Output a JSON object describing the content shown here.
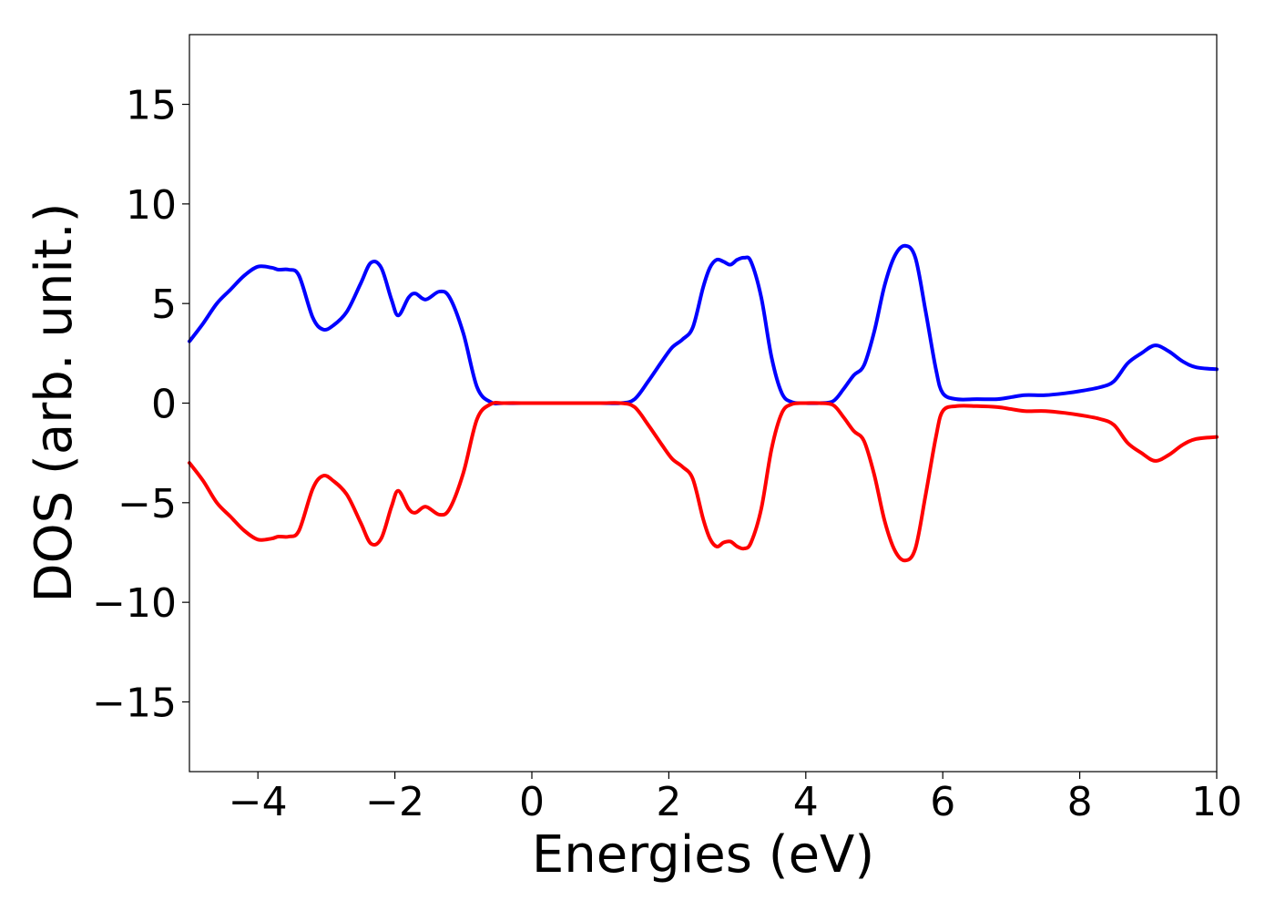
{
  "chart_data": {
    "type": "line",
    "title": "",
    "xlabel": "Energies (eV)",
    "ylabel": "DOS (arb. unit.)",
    "xlim": [
      -5,
      10
    ],
    "ylim": [
      -18.5,
      18.5
    ],
    "xticks": [
      -4,
      -2,
      0,
      2,
      4,
      6,
      8,
      10
    ],
    "yticks": [
      -15,
      -10,
      -5,
      0,
      5,
      10,
      15
    ],
    "xtick_labels": [
      "−4",
      "−2",
      "0",
      "2",
      "4",
      "6",
      "8",
      "10"
    ],
    "ytick_labels": [
      "−15",
      "−10",
      "−5",
      "0",
      "5",
      "10",
      "15"
    ],
    "grid": false,
    "legend": "none",
    "series": [
      {
        "color": "#0000ff",
        "x": [
          -5.0,
          -4.8,
          -4.6,
          -4.4,
          -4.2,
          -4.0,
          -3.8,
          -3.7,
          -3.55,
          -3.4,
          -3.2,
          -3.05,
          -2.9,
          -2.7,
          -2.5,
          -2.35,
          -2.2,
          -2.05,
          -1.95,
          -1.8,
          -1.7,
          -1.55,
          -1.35,
          -1.2,
          -1.0,
          -0.8,
          -0.6,
          -0.4,
          0.0,
          0.5,
          1.0,
          1.3,
          1.5,
          1.7,
          1.9,
          2.05,
          2.2,
          2.35,
          2.5,
          2.6,
          2.7,
          2.8,
          2.9,
          3.0,
          3.1,
          3.2,
          3.35,
          3.5,
          3.65,
          3.8,
          4.0,
          4.2,
          4.4,
          4.55,
          4.7,
          4.85,
          5.0,
          5.15,
          5.3,
          5.45,
          5.6,
          5.75,
          5.9,
          6.0,
          6.2,
          6.5,
          6.8,
          7.0,
          7.2,
          7.5,
          7.8,
          8.0,
          8.3,
          8.5,
          8.7,
          8.9,
          9.1,
          9.3,
          9.5,
          9.7,
          10.0
        ],
        "y": [
          3.1,
          4.0,
          5.0,
          5.7,
          6.4,
          6.85,
          6.8,
          6.7,
          6.7,
          6.4,
          4.3,
          3.7,
          3.9,
          4.6,
          6.0,
          7.05,
          6.8,
          5.2,
          4.4,
          5.3,
          5.5,
          5.2,
          5.6,
          5.3,
          3.5,
          0.8,
          0.05,
          0.0,
          0.0,
          0.0,
          0.0,
          0.0,
          0.2,
          1.1,
          2.1,
          2.8,
          3.2,
          3.8,
          5.8,
          6.8,
          7.2,
          7.1,
          6.95,
          7.2,
          7.3,
          7.1,
          5.3,
          2.3,
          0.5,
          0.05,
          0.0,
          0.0,
          0.1,
          0.7,
          1.4,
          1.9,
          3.6,
          5.9,
          7.4,
          7.9,
          7.3,
          4.6,
          1.7,
          0.5,
          0.2,
          0.2,
          0.2,
          0.3,
          0.4,
          0.4,
          0.5,
          0.6,
          0.8,
          1.1,
          2.0,
          2.5,
          2.9,
          2.6,
          2.1,
          1.8,
          1.7
        ]
      },
      {
        "color": "#ff0000",
        "x": [
          -5.0,
          -4.8,
          -4.6,
          -4.4,
          -4.2,
          -4.0,
          -3.8,
          -3.7,
          -3.55,
          -3.4,
          -3.2,
          -3.05,
          -2.9,
          -2.7,
          -2.5,
          -2.35,
          -2.2,
          -2.05,
          -1.95,
          -1.8,
          -1.7,
          -1.55,
          -1.35,
          -1.2,
          -1.0,
          -0.8,
          -0.6,
          -0.4,
          0.0,
          0.5,
          1.0,
          1.3,
          1.5,
          1.7,
          1.9,
          2.05,
          2.2,
          2.35,
          2.5,
          2.6,
          2.7,
          2.8,
          2.9,
          3.0,
          3.1,
          3.2,
          3.35,
          3.5,
          3.65,
          3.8,
          4.0,
          4.2,
          4.4,
          4.55,
          4.7,
          4.85,
          5.0,
          5.15,
          5.3,
          5.45,
          5.6,
          5.75,
          5.9,
          6.0,
          6.2,
          6.5,
          6.8,
          7.0,
          7.2,
          7.5,
          7.8,
          8.0,
          8.3,
          8.5,
          8.7,
          8.9,
          9.1,
          9.3,
          9.5,
          9.7,
          10.0
        ],
        "y": [
          -3.0,
          -3.9,
          -5.0,
          -5.7,
          -6.4,
          -6.85,
          -6.8,
          -6.7,
          -6.7,
          -6.4,
          -4.3,
          -3.65,
          -3.9,
          -4.6,
          -6.0,
          -7.05,
          -6.8,
          -5.2,
          -4.4,
          -5.3,
          -5.5,
          -5.2,
          -5.6,
          -5.3,
          -3.5,
          -0.8,
          -0.05,
          0.0,
          0.0,
          0.0,
          0.0,
          0.0,
          -0.2,
          -1.1,
          -2.1,
          -2.8,
          -3.2,
          -3.8,
          -5.8,
          -6.8,
          -7.2,
          -7.0,
          -6.95,
          -7.2,
          -7.3,
          -7.0,
          -5.3,
          -2.3,
          -0.5,
          -0.05,
          0.0,
          0.0,
          -0.1,
          -0.7,
          -1.4,
          -1.9,
          -3.6,
          -5.9,
          -7.4,
          -7.9,
          -7.3,
          -4.6,
          -1.7,
          -0.4,
          -0.15,
          -0.15,
          -0.2,
          -0.3,
          -0.4,
          -0.4,
          -0.5,
          -0.6,
          -0.8,
          -1.1,
          -2.0,
          -2.5,
          -2.9,
          -2.6,
          -2.1,
          -1.8,
          -1.7
        ]
      }
    ]
  }
}
